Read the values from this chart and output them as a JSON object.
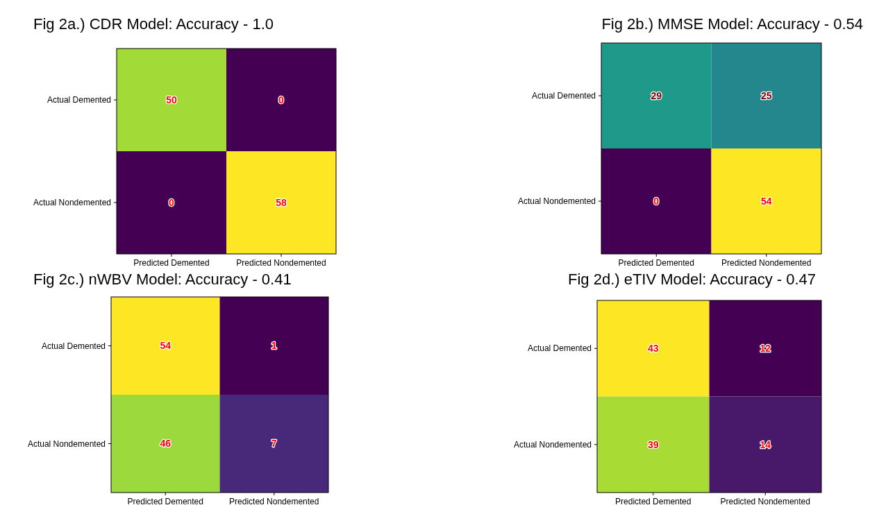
{
  "chart_data": [
    {
      "type": "heatmap",
      "title": "Fig 2a.) CDR Model: Accuracy - 1.0",
      "categories": [
        "Predicted Demented",
        "Predicted Nondemented"
      ],
      "y_categories": [
        "Actual Demented",
        "Actual Nondemented"
      ],
      "cells": [
        [
          50,
          0
        ],
        [
          0,
          58
        ]
      ],
      "data_labels": true
    },
    {
      "type": "heatmap",
      "title": "Fig 2b.) MMSE Model: Accuracy - 0.54",
      "categories": [
        "Predicted Demented",
        "Predicted Nondemented"
      ],
      "y_categories": [
        "Actual Demented",
        "Actual Nondemented"
      ],
      "cells": [
        [
          29,
          25
        ],
        [
          0,
          54
        ]
      ],
      "data_labels": true
    },
    {
      "type": "heatmap",
      "title": "Fig 2c.) nWBV Model: Accuracy - 0.41",
      "categories": [
        "Predicted Demented",
        "Predicted Nondemented"
      ],
      "y_categories": [
        "Actual Demented",
        "Actual Nondemented"
      ],
      "cells": [
        [
          54,
          1
        ],
        [
          46,
          7
        ]
      ],
      "data_labels": true
    },
    {
      "type": "heatmap",
      "title": "Fig 2d.) eTIV Model: Accuracy - 0.47",
      "categories": [
        "Predicted Demented",
        "Predicted Nondemented"
      ],
      "y_categories": [
        "Actual Demented",
        "Actual Nondemented"
      ],
      "cells": [
        [
          43,
          12
        ],
        [
          39,
          14
        ]
      ],
      "data_labels": true
    }
  ]
}
